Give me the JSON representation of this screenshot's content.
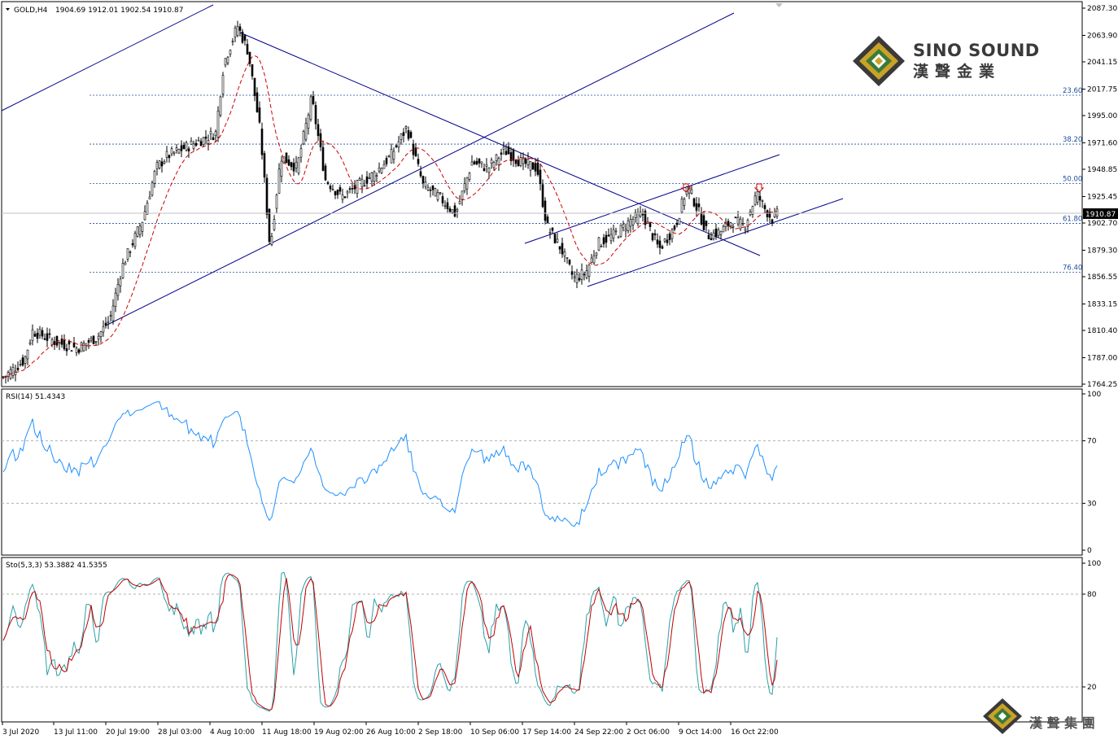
{
  "main": {
    "symbol": "GOLD,H4",
    "ohlc": "1904.69 1912.01 1902.54 1910.87",
    "last_price": "1910.87",
    "price_ticks": [
      "2087.30",
      "2063.90",
      "2041.15",
      "2017.75",
      "1995.00",
      "1971.60",
      "1948.85",
      "1925.45",
      "1902.70",
      "1879.30",
      "1856.55",
      "1833.15",
      "1810.40",
      "1787.00",
      "1764.25"
    ]
  },
  "fib_levels": [
    {
      "label": "23.60",
      "price": 2012.5
    },
    {
      "label": "38.20",
      "price": 1970.5
    },
    {
      "label": "50.00",
      "price": 1936.5
    },
    {
      "label": "61.80",
      "price": 1902.3
    },
    {
      "label": "76.40",
      "price": 1860.5
    }
  ],
  "rsi": {
    "label": "RSI(14) 51.4343",
    "ticks": [
      "100",
      "70",
      "30",
      "0"
    ],
    "levels": [
      70,
      30
    ]
  },
  "stoch": {
    "label": "Sto(5,3,3) 53.3882 41.5355",
    "ticks": [
      "100",
      "80",
      "20"
    ],
    "levels": [
      80,
      20
    ]
  },
  "dates": [
    "3 Jul 2020",
    "13 Jul 11:00",
    "20 Jul 19:00",
    "28 Jul 03:00",
    "4 Aug 10:00",
    "11 Aug 18:00",
    "19 Aug 02:00",
    "26 Aug 10:00",
    "2 Sep 18:00",
    "10 Sep 06:00",
    "17 Sep 14:00",
    "24 Sep 22:00",
    "2 Oct 06:00",
    "9 Oct 14:00",
    "16 Oct 22:00"
  ],
  "logo": {
    "brand_en": "SINO SOUND",
    "brand_cn": "漢聲金業",
    "footer_cn": "漢 聲 集 團"
  },
  "colors": {
    "candle": "#000000",
    "ma": "#cc0000",
    "trendline": "#00008b",
    "fib": "#1f4e9c",
    "rsi": "#1e90ff",
    "stoch_main": "#2aa0a8",
    "stoch_signal": "#c00000",
    "gold": "#b8960c",
    "green": "#3a7a3a",
    "brand_dark": "#3a3a3a"
  },
  "chart_data": {
    "type": "candlestick",
    "title": "GOLD,H4",
    "ylim": [
      1764.25,
      2087.3
    ],
    "series": [
      {
        "name": "GOLD",
        "close_by_date": {
          "3 Jul 2020": 1775,
          "13 Jul 11:00": 1805,
          "20 Jul 19:00": 1815,
          "28 Jul 03:00": 1960,
          "4 Aug 10:00": 2060,
          "11 Aug 18:00": 1915,
          "19 Aug 02:00": 1935,
          "26 Aug 10:00": 1945,
          "2 Sep 18:00": 1935,
          "10 Sep 06:00": 1955,
          "17 Sep 14:00": 1950,
          "24 Sep 22:00": 1860,
          "2 Oct 06:00": 1905,
          "9 Oct 14:00": 1920,
          "16 Oct 22:00": 1910.87
        }
      },
      {
        "name": "RSI(14)",
        "last": 51.4343
      },
      {
        "name": "Sto(5,3,3)",
        "main": 53.3882,
        "signal": 41.5355
      }
    ]
  }
}
